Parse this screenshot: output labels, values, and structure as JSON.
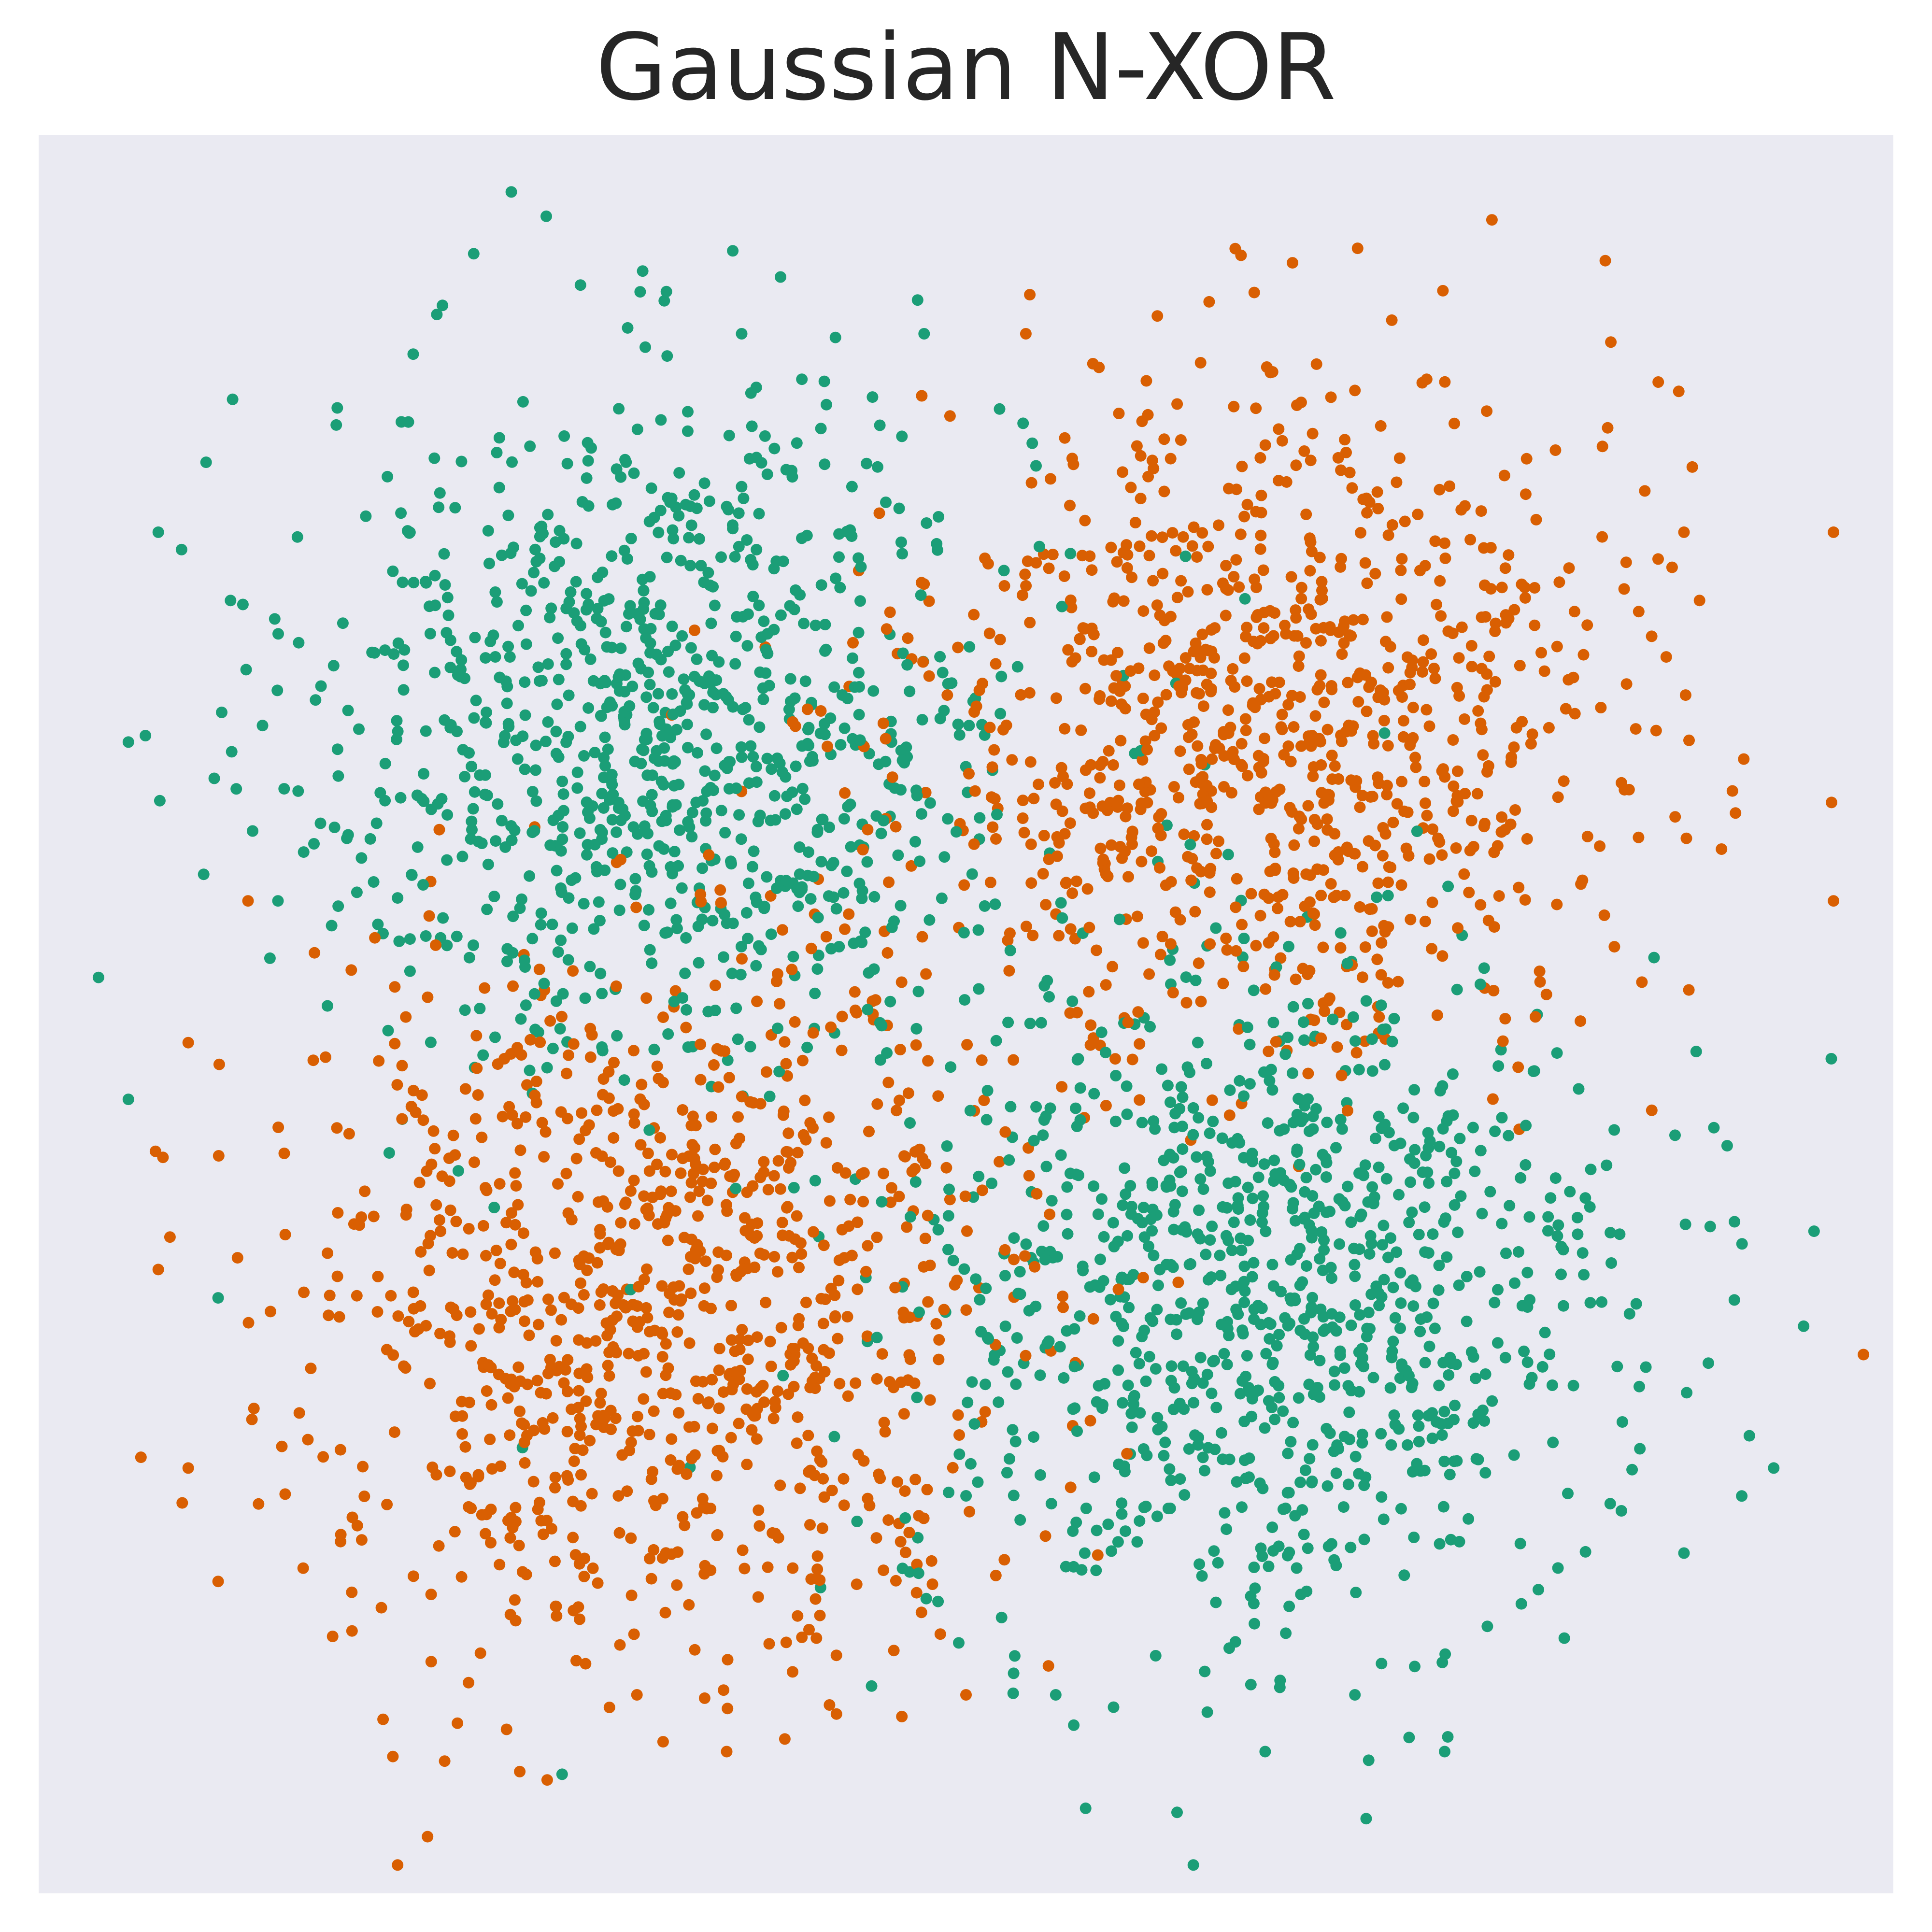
{
  "chart_data": {
    "type": "scatter",
    "title": "Gaussian N-XOR",
    "xlabel": "",
    "ylabel": "",
    "xlim": [
      -3.1,
      3.1
    ],
    "ylim": [
      -3.1,
      3.1
    ],
    "grid": false,
    "legend": "none",
    "background": "#eaeaf2",
    "series": [
      {
        "color": "#1b9e77",
        "clusters": [
          {
            "center": [
              -1.0,
              1.0
            ],
            "std": 0.6,
            "count": 1000
          },
          {
            "center": [
              1.0,
              -1.0
            ],
            "std": 0.6,
            "count": 1000
          }
        ],
        "points": [
          [
            -1.52,
            2.9
          ],
          [
            -0.62,
            2.6
          ],
          [
            -2.7,
            1.7
          ],
          [
            -2.9,
            0.13
          ],
          [
            -2.8,
            0.96
          ],
          [
            -1.75,
            2.5
          ],
          [
            -0.75,
            2.4
          ],
          [
            -0.14,
            2.4
          ],
          [
            -2.8,
            -0.3
          ],
          [
            -2.5,
            -1.0
          ],
          [
            -2.3,
            0.4
          ],
          [
            0.4,
            -2.8
          ],
          [
            0.76,
            -3.0
          ],
          [
            1.0,
            -2.6
          ],
          [
            1.3,
            -2.4
          ],
          [
            1.5,
            -2.3
          ],
          [
            2.0,
            -2.2
          ],
          [
            2.4,
            -1.9
          ],
          [
            2.8,
            -1.1
          ],
          [
            2.5,
            -0.4
          ],
          [
            1.9,
            -0.2
          ],
          [
            2.3,
            0.2
          ],
          [
            0.3,
            -2.4
          ],
          [
            1.6,
            -2.6
          ],
          [
            2.7,
            -1.6
          ]
        ]
      },
      {
        "color": "#d95f02",
        "clusters": [
          {
            "center": [
              1.0,
              1.0
            ],
            "std": 0.6,
            "count": 1000
          },
          {
            "center": [
              -1.0,
              -1.0
            ],
            "std": 0.6,
            "count": 1000
          }
        ],
        "points": [
          [
            0.9,
            2.7
          ],
          [
            0.2,
            2.4
          ],
          [
            2.2,
            1.5
          ],
          [
            1.8,
            1.9
          ],
          [
            2.9,
            1.7
          ],
          [
            3.0,
            -1.2
          ],
          [
            2.9,
            0.4
          ],
          [
            -2.6,
            -0.1
          ],
          [
            -2.7,
            -0.9
          ],
          [
            -2.6,
            -1.6
          ],
          [
            -2.5,
            -2.0
          ],
          [
            -1.8,
            -2.9
          ],
          [
            -1.4,
            -2.7
          ],
          [
            -1.9,
            -3.0
          ],
          [
            -0.8,
            -2.6
          ],
          [
            -0.5,
            -2.2
          ],
          [
            0.0,
            -2.4
          ],
          [
            -2.1,
            -0.7
          ],
          [
            -1.7,
            -2.5
          ],
          [
            -1.1,
            -2.4
          ],
          [
            2.4,
            1.7
          ],
          [
            2.6,
            0.9
          ],
          [
            -2.2,
            -1.5
          ],
          [
            1.3,
            2.2
          ],
          [
            -2.4,
            0.4
          ]
        ]
      }
    ]
  }
}
